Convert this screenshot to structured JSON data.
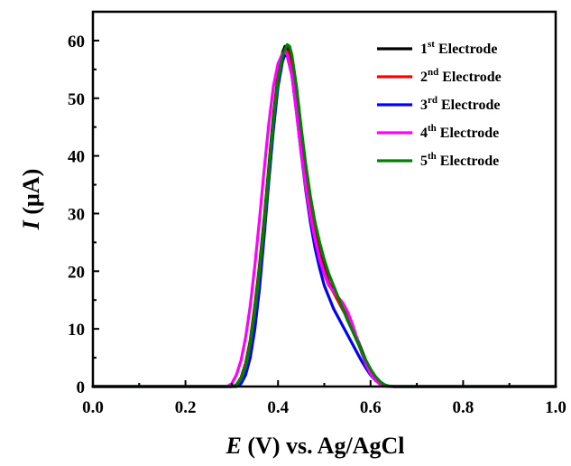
{
  "chart_data": {
    "type": "line",
    "title": "",
    "xlabel": {
      "var": "E",
      "rest": " (V) vs. Ag/AgCl"
    },
    "ylabel": {
      "var": "I",
      "rest": " (μA)"
    },
    "xlim": [
      0.0,
      1.0
    ],
    "ylim": [
      0,
      65
    ],
    "x_ticks": [
      "0.0",
      "0.2",
      "0.4",
      "0.6",
      "0.8",
      "1.0"
    ],
    "x_tick_values": [
      0.0,
      0.2,
      0.4,
      0.6,
      0.8,
      1.0
    ],
    "y_ticks": [
      "0",
      "10",
      "20",
      "30",
      "40",
      "50",
      "60"
    ],
    "y_tick_values": [
      0,
      10,
      20,
      30,
      40,
      50,
      60
    ],
    "grid": false,
    "legend_position": "top-right",
    "series": [
      {
        "name": {
          "num": "1",
          "sup": "st",
          "rest": " Electrode"
        },
        "color": "#000000",
        "x": [
          0.0,
          0.3,
          0.31,
          0.32,
          0.33,
          0.34,
          0.35,
          0.36,
          0.37,
          0.38,
          0.39,
          0.4,
          0.41,
          0.415,
          0.42,
          0.43,
          0.44,
          0.45,
          0.46,
          0.47,
          0.48,
          0.49,
          0.5,
          0.51,
          0.52,
          0.53,
          0.54,
          0.55,
          0.56,
          0.57,
          0.58,
          0.59,
          0.6,
          0.61,
          0.62,
          0.63,
          0.64,
          0.65,
          1.0
        ],
        "y": [
          0,
          0,
          0.3,
          1.5,
          4,
          8,
          14,
          21,
          29,
          38,
          47,
          54,
          58,
          59,
          58.8,
          55.5,
          49,
          42,
          36,
          31,
          26.5,
          23,
          20.5,
          18,
          16.5,
          15,
          13.5,
          12,
          10.5,
          8.5,
          6.5,
          4.5,
          3,
          1.7,
          0.8,
          0.3,
          0.05,
          0,
          0
        ]
      },
      {
        "name": {
          "num": "2",
          "sup": "nd",
          "rest": " Electrode"
        },
        "color": "#ff0000",
        "x": [
          0.0,
          0.3,
          0.31,
          0.32,
          0.33,
          0.34,
          0.35,
          0.36,
          0.37,
          0.38,
          0.39,
          0.4,
          0.41,
          0.415,
          0.42,
          0.43,
          0.44,
          0.45,
          0.46,
          0.47,
          0.48,
          0.49,
          0.5,
          0.51,
          0.52,
          0.53,
          0.54,
          0.55,
          0.56,
          0.57,
          0.58,
          0.59,
          0.6,
          0.61,
          0.62,
          0.63,
          0.64,
          0.65,
          1.0
        ],
        "y": [
          0,
          0,
          0.3,
          1.4,
          3.8,
          7.8,
          13.6,
          20.5,
          28.5,
          37.5,
          46.5,
          53.5,
          57.5,
          58.3,
          58.1,
          55,
          48.5,
          41.5,
          35.5,
          30.5,
          26,
          22.5,
          20,
          17.8,
          16.3,
          14.8,
          13.3,
          11.8,
          10.2,
          8.2,
          6.2,
          4.3,
          2.8,
          1.6,
          0.7,
          0.25,
          0.05,
          0,
          0
        ]
      },
      {
        "name": {
          "num": "3",
          "sup": "rd",
          "rest": " Electrode"
        },
        "color": "#0000ff",
        "x": [
          0.0,
          0.31,
          0.32,
          0.33,
          0.34,
          0.35,
          0.36,
          0.37,
          0.38,
          0.39,
          0.4,
          0.41,
          0.415,
          0.42,
          0.43,
          0.44,
          0.45,
          0.46,
          0.47,
          0.48,
          0.49,
          0.5,
          0.51,
          0.52,
          0.53,
          0.54,
          0.55,
          0.56,
          0.57,
          0.58,
          0.59,
          0.6,
          0.61,
          0.62,
          0.63,
          0.64,
          0.65,
          1.0
        ],
        "y": [
          0,
          0,
          0.5,
          2,
          5,
          10,
          17,
          26,
          35.5,
          44.5,
          52,
          56.5,
          57.5,
          57.3,
          54,
          47.5,
          40.5,
          34,
          28.5,
          24,
          20.5,
          17.5,
          15.5,
          13.5,
          12,
          10.5,
          9,
          7.5,
          6,
          4.5,
          3.2,
          2,
          1.1,
          0.5,
          0.2,
          0.05,
          0,
          0
        ]
      },
      {
        "name": {
          "num": "4",
          "sup": "th",
          "rest": " Electrode"
        },
        "color": "#ff00ff",
        "x": [
          0.0,
          0.29,
          0.3,
          0.31,
          0.32,
          0.33,
          0.34,
          0.35,
          0.36,
          0.37,
          0.38,
          0.39,
          0.4,
          0.41,
          0.415,
          0.42,
          0.43,
          0.44,
          0.45,
          0.46,
          0.47,
          0.48,
          0.49,
          0.5,
          0.51,
          0.52,
          0.53,
          0.54,
          0.55,
          0.56,
          0.57,
          0.58,
          0.59,
          0.6,
          0.61,
          0.62,
          0.63,
          0.64,
          1.0
        ],
        "y": [
          0,
          0,
          0.5,
          2,
          4.5,
          8.5,
          14,
          21,
          29,
          37.5,
          45.5,
          52,
          56,
          57.8,
          58,
          57.5,
          54,
          47.5,
          40.5,
          34.5,
          29.5,
          25.5,
          22,
          19.5,
          17.5,
          16.5,
          15.5,
          14.5,
          13,
          11,
          8.5,
          6,
          3.8,
          2.2,
          1.1,
          0.4,
          0.1,
          0,
          0
        ]
      },
      {
        "name": {
          "num": "5",
          "sup": "th",
          "rest": " Electrode"
        },
        "color": "#008000",
        "x": [
          0.0,
          0.3,
          0.31,
          0.32,
          0.33,
          0.34,
          0.35,
          0.36,
          0.37,
          0.38,
          0.39,
          0.4,
          0.41,
          0.42,
          0.425,
          0.43,
          0.44,
          0.45,
          0.46,
          0.47,
          0.48,
          0.49,
          0.5,
          0.51,
          0.52,
          0.53,
          0.54,
          0.55,
          0.56,
          0.57,
          0.58,
          0.59,
          0.6,
          0.61,
          0.62,
          0.63,
          0.64,
          0.65,
          1.0
        ],
        "y": [
          0,
          0,
          0.3,
          1.3,
          3.5,
          7.5,
          13,
          20,
          28,
          37,
          46,
          53,
          57.5,
          59.3,
          59,
          57.5,
          52,
          45,
          38.5,
          33,
          28.5,
          25,
          22,
          19.5,
          17.5,
          15.5,
          13.5,
          11.5,
          9.8,
          8,
          6.2,
          4.5,
          3,
          1.8,
          0.9,
          0.3,
          0.08,
          0,
          0
        ]
      }
    ]
  }
}
